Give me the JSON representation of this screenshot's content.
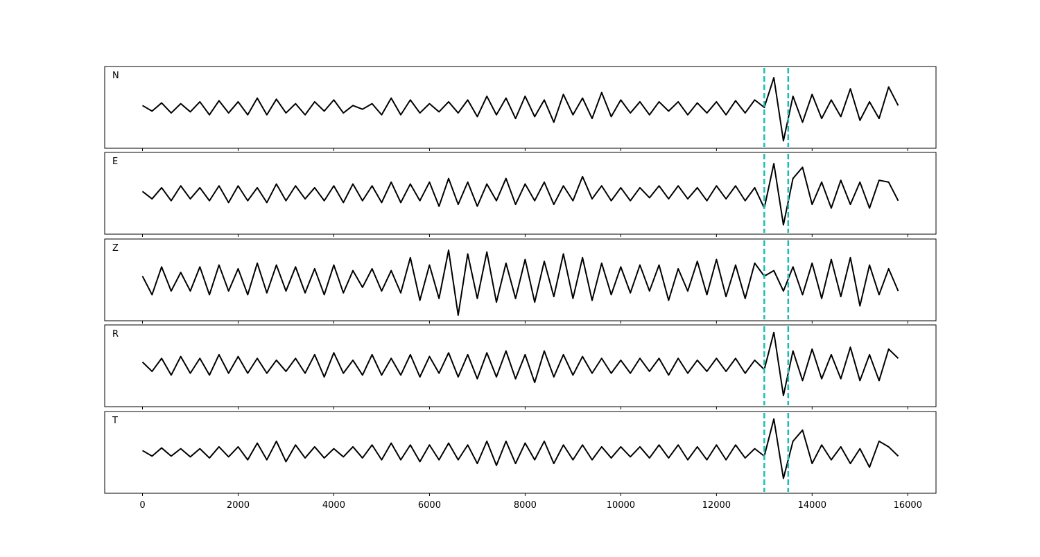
{
  "chart_data": {
    "type": "line",
    "x": [
      0,
      200,
      400,
      600,
      800,
      1000,
      1200,
      1400,
      1600,
      1800,
      2000,
      2200,
      2400,
      2600,
      2800,
      3000,
      3200,
      3400,
      3600,
      3800,
      4000,
      4200,
      4400,
      4600,
      4800,
      5000,
      5200,
      5400,
      5600,
      5800,
      6000,
      6200,
      6400,
      6600,
      6800,
      7000,
      7200,
      7400,
      7600,
      7800,
      8000,
      8200,
      8400,
      8600,
      8800,
      9000,
      9200,
      9400,
      9600,
      9800,
      10000,
      10200,
      10400,
      10600,
      10800,
      11000,
      11200,
      11400,
      11600,
      11800,
      12000,
      12200,
      12400,
      12600,
      12800,
      13000,
      13200,
      13400,
      13600,
      13800,
      14000,
      14200,
      14400,
      14600,
      14800,
      15000,
      15200,
      15400,
      15600,
      15800
    ],
    "series": [
      {
        "name": "N",
        "color": "#000000",
        "values": [
          0.05,
          -0.1,
          0.12,
          -0.15,
          0.1,
          -0.12,
          0.15,
          -0.2,
          0.18,
          -0.15,
          0.15,
          -0.2,
          0.25,
          -0.2,
          0.22,
          -0.15,
          0.1,
          -0.2,
          0.15,
          -0.1,
          0.2,
          -0.15,
          0.05,
          -0.05,
          0.1,
          -0.2,
          0.25,
          -0.2,
          0.2,
          -0.15,
          0.1,
          -0.12,
          0.15,
          -0.15,
          0.2,
          -0.25,
          0.3,
          -0.2,
          0.25,
          -0.3,
          0.3,
          -0.25,
          0.2,
          -0.4,
          0.35,
          -0.2,
          0.25,
          -0.3,
          0.4,
          -0.25,
          0.2,
          -0.15,
          0.15,
          -0.2,
          0.15,
          -0.1,
          0.15,
          -0.2,
          0.12,
          -0.15,
          0.15,
          -0.2,
          0.18,
          -0.15,
          0.2,
          0.0,
          0.8,
          -0.9,
          0.3,
          -0.4,
          0.35,
          -0.3,
          0.2,
          -0.25,
          0.5,
          -0.35,
          0.15,
          -0.3,
          0.55,
          0.05
        ]
      },
      {
        "name": "E",
        "color": "#000000",
        "values": [
          0.05,
          -0.15,
          0.15,
          -0.2,
          0.2,
          -0.15,
          0.15,
          -0.2,
          0.2,
          -0.25,
          0.2,
          -0.2,
          0.15,
          -0.25,
          0.25,
          -0.2,
          0.2,
          -0.15,
          0.15,
          -0.2,
          0.2,
          -0.25,
          0.25,
          -0.2,
          0.2,
          -0.25,
          0.3,
          -0.25,
          0.25,
          -0.2,
          0.3,
          -0.35,
          0.4,
          -0.3,
          0.3,
          -0.35,
          0.25,
          -0.2,
          0.4,
          -0.3,
          0.25,
          -0.2,
          0.3,
          -0.3,
          0.2,
          -0.2,
          0.45,
          -0.15,
          0.2,
          -0.2,
          0.15,
          -0.2,
          0.15,
          -0.12,
          0.2,
          -0.15,
          0.2,
          -0.15,
          0.15,
          -0.2,
          0.2,
          -0.15,
          0.2,
          -0.2,
          0.15,
          -0.4,
          0.8,
          -0.85,
          0.4,
          0.7,
          -0.3,
          0.3,
          -0.4,
          0.35,
          -0.3,
          0.3,
          -0.4,
          0.35,
          0.3,
          -0.2
        ]
      },
      {
        "name": "Z",
        "color": "#000000",
        "values": [
          0.1,
          -0.4,
          0.35,
          -0.3,
          0.2,
          -0.3,
          0.35,
          -0.4,
          0.4,
          -0.3,
          0.3,
          -0.4,
          0.45,
          -0.35,
          0.4,
          -0.3,
          0.35,
          -0.35,
          0.3,
          -0.4,
          0.4,
          -0.35,
          0.25,
          -0.2,
          0.3,
          -0.3,
          0.25,
          -0.35,
          0.6,
          -0.55,
          0.4,
          -0.5,
          0.8,
          -0.95,
          0.7,
          -0.5,
          0.75,
          -0.6,
          0.45,
          -0.5,
          0.55,
          -0.6,
          0.5,
          -0.45,
          0.7,
          -0.5,
          0.6,
          -0.55,
          0.45,
          -0.4,
          0.35,
          -0.35,
          0.4,
          -0.3,
          0.4,
          -0.55,
          0.3,
          -0.3,
          0.5,
          -0.4,
          0.55,
          -0.45,
          0.4,
          -0.5,
          0.45,
          0.1,
          0.25,
          -0.3,
          0.35,
          -0.4,
          0.45,
          -0.5,
          0.55,
          -0.45,
          0.6,
          -0.7,
          0.4,
          -0.4,
          0.3,
          -0.3
        ]
      },
      {
        "name": "R",
        "color": "#000000",
        "values": [
          0.1,
          -0.15,
          0.2,
          -0.25,
          0.25,
          -0.2,
          0.2,
          -0.25,
          0.3,
          -0.2,
          0.25,
          -0.2,
          0.2,
          -0.2,
          0.15,
          -0.15,
          0.2,
          -0.2,
          0.3,
          -0.3,
          0.35,
          -0.2,
          0.15,
          -0.25,
          0.3,
          -0.25,
          0.2,
          -0.25,
          0.3,
          -0.3,
          0.25,
          -0.2,
          0.35,
          -0.3,
          0.3,
          -0.35,
          0.35,
          -0.3,
          0.4,
          -0.35,
          0.3,
          -0.45,
          0.4,
          -0.3,
          0.3,
          -0.25,
          0.25,
          -0.2,
          0.2,
          -0.2,
          0.15,
          -0.2,
          0.2,
          -0.15,
          0.2,
          -0.25,
          0.2,
          -0.2,
          0.15,
          -0.15,
          0.2,
          -0.15,
          0.2,
          -0.2,
          0.15,
          -0.1,
          0.9,
          -0.8,
          0.4,
          -0.4,
          0.45,
          -0.35,
          0.3,
          -0.35,
          0.5,
          -0.4,
          0.3,
          -0.4,
          0.45,
          0.2
        ]
      },
      {
        "name": "T",
        "color": "#000000",
        "values": [
          0.05,
          -0.1,
          0.12,
          -0.1,
          0.1,
          -0.12,
          0.1,
          -0.15,
          0.15,
          -0.12,
          0.15,
          -0.2,
          0.25,
          -0.2,
          0.3,
          -0.25,
          0.2,
          -0.15,
          0.15,
          -0.15,
          0.1,
          -0.12,
          0.15,
          -0.15,
          0.2,
          -0.2,
          0.25,
          -0.2,
          0.2,
          -0.25,
          0.2,
          -0.2,
          0.25,
          -0.2,
          0.2,
          -0.3,
          0.3,
          -0.35,
          0.3,
          -0.3,
          0.25,
          -0.2,
          0.3,
          -0.3,
          0.2,
          -0.2,
          0.2,
          -0.2,
          0.15,
          -0.15,
          0.15,
          -0.12,
          0.15,
          -0.15,
          0.2,
          -0.15,
          0.2,
          -0.2,
          0.15,
          -0.2,
          0.2,
          -0.2,
          0.2,
          -0.15,
          0.1,
          -0.1,
          0.9,
          -0.7,
          0.3,
          0.6,
          -0.3,
          0.2,
          -0.2,
          0.15,
          -0.3,
          0.1,
          -0.4,
          0.3,
          0.15,
          -0.1
        ]
      }
    ],
    "xlim": [
      -790,
      16590
    ],
    "xticks": [
      0,
      2000,
      4000,
      6000,
      8000,
      10000,
      12000,
      14000,
      16000
    ],
    "ylim": [
      -1.1,
      1.1
    ],
    "vlines": [
      13000,
      13500
    ],
    "vline_color": "#17bfb4"
  }
}
